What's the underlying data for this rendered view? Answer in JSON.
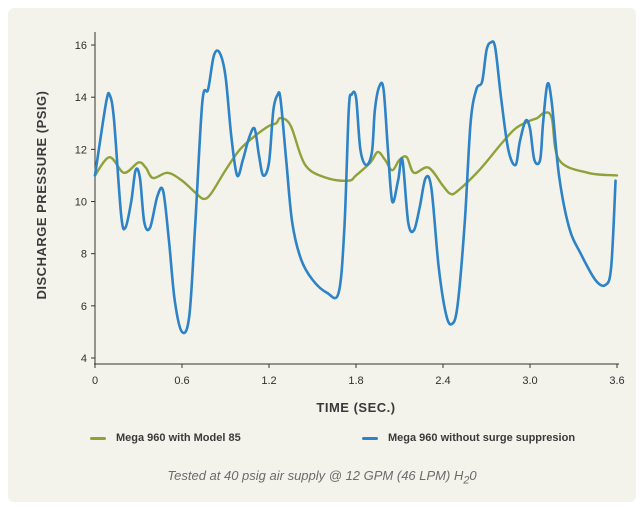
{
  "chart_data": {
    "type": "line",
    "title": "",
    "xlabel": "TIME (SEC.)",
    "ylabel": "DISCHARGE PRESSURE (PSIG)",
    "xlim": [
      0,
      3.6
    ],
    "ylim": [
      4,
      16.5
    ],
    "xticks": [
      0,
      0.6,
      1.2,
      1.8,
      2.4,
      3.0,
      3.6
    ],
    "xtick_labels": [
      "0",
      "0.6",
      "1.2",
      "1.8",
      "2.4",
      "3.0",
      "3.6"
    ],
    "yticks": [
      4,
      6,
      8,
      10,
      12,
      14,
      16
    ],
    "ytick_labels": [
      "4",
      "6",
      "8",
      "10",
      "12",
      "14",
      "16"
    ],
    "grid": false,
    "legend_position": "bottom",
    "series": [
      {
        "name": "Mega 960 with Model 85",
        "color": "#8fa23a",
        "x": [
          0,
          0.1,
          0.2,
          0.3,
          0.35,
          0.4,
          0.5,
          0.6,
          0.7,
          0.75,
          0.8,
          0.9,
          1.0,
          1.1,
          1.2,
          1.25,
          1.28,
          1.35,
          1.45,
          1.6,
          1.75,
          1.8,
          1.9,
          1.95,
          2.0,
          2.05,
          2.1,
          2.15,
          2.2,
          2.3,
          2.4,
          2.45,
          2.5,
          2.65,
          2.8,
          2.9,
          3.0,
          3.05,
          3.1,
          3.15,
          3.2,
          3.4,
          3.6
        ],
        "y": [
          11.0,
          11.7,
          11.1,
          11.5,
          11.3,
          10.9,
          11.1,
          10.8,
          10.3,
          10.1,
          10.3,
          11.2,
          12.0,
          12.5,
          12.9,
          13.0,
          13.2,
          12.9,
          11.4,
          10.9,
          10.8,
          11.0,
          11.5,
          11.9,
          11.6,
          11.2,
          11.6,
          11.7,
          11.1,
          11.3,
          10.6,
          10.3,
          10.4,
          11.2,
          12.2,
          12.8,
          13.1,
          13.2,
          13.4,
          13.2,
          11.6,
          11.1,
          11.0
        ]
      },
      {
        "name": "Mega 960 without surge suppresion",
        "color": "#2d83c6",
        "x": [
          0,
          0.04,
          0.08,
          0.1,
          0.13,
          0.18,
          0.21,
          0.25,
          0.28,
          0.31,
          0.34,
          0.38,
          0.43,
          0.47,
          0.51,
          0.55,
          0.6,
          0.65,
          0.69,
          0.74,
          0.78,
          0.82,
          0.86,
          0.9,
          0.94,
          0.98,
          1.02,
          1.06,
          1.1,
          1.13,
          1.16,
          1.2,
          1.23,
          1.26,
          1.28,
          1.32,
          1.36,
          1.42,
          1.5,
          1.6,
          1.68,
          1.72,
          1.75,
          1.77,
          1.8,
          1.83,
          1.87,
          1.91,
          1.93,
          1.96,
          1.99,
          2.02,
          2.05,
          2.09,
          2.12,
          2.16,
          2.2,
          2.24,
          2.28,
          2.32,
          2.37,
          2.42,
          2.46,
          2.5,
          2.55,
          2.59,
          2.63,
          2.67,
          2.7,
          2.73,
          2.76,
          2.8,
          2.85,
          2.9,
          2.93,
          2.97,
          3.0,
          3.03,
          3.07,
          3.09,
          3.12,
          3.15,
          3.2,
          3.27,
          3.35,
          3.45,
          3.52,
          3.56,
          3.59
        ],
        "y": [
          11.0,
          12.5,
          13.9,
          14.1,
          13.2,
          9.5,
          9.0,
          10.0,
          11.2,
          10.9,
          9.2,
          9.0,
          10.2,
          10.4,
          8.5,
          6.2,
          5.0,
          5.6,
          9.0,
          13.8,
          14.3,
          15.6,
          15.7,
          14.8,
          12.5,
          11.0,
          11.6,
          12.4,
          12.8,
          11.8,
          11.0,
          11.5,
          13.5,
          14.1,
          13.9,
          11.5,
          9.2,
          7.8,
          7.0,
          6.5,
          6.5,
          9.0,
          13.5,
          14.1,
          14.0,
          12.0,
          11.4,
          11.9,
          13.5,
          14.4,
          14.3,
          12.0,
          10.0,
          10.8,
          11.6,
          9.2,
          8.9,
          9.8,
          10.9,
          10.5,
          7.5,
          5.7,
          5.3,
          6.0,
          9.2,
          13.0,
          14.3,
          14.6,
          15.8,
          16.1,
          15.9,
          14.0,
          12.0,
          11.4,
          12.3,
          13.1,
          12.8,
          11.6,
          11.6,
          13.0,
          14.5,
          13.8,
          11.0,
          9.0,
          8.0,
          7.0,
          6.8,
          7.5,
          10.8
        ]
      }
    ]
  },
  "footnote": {
    "text": "Tested at 40 psig air supply @ 12 GPM (46 LPM) H",
    "subscript": "2",
    "suffix": "0"
  }
}
